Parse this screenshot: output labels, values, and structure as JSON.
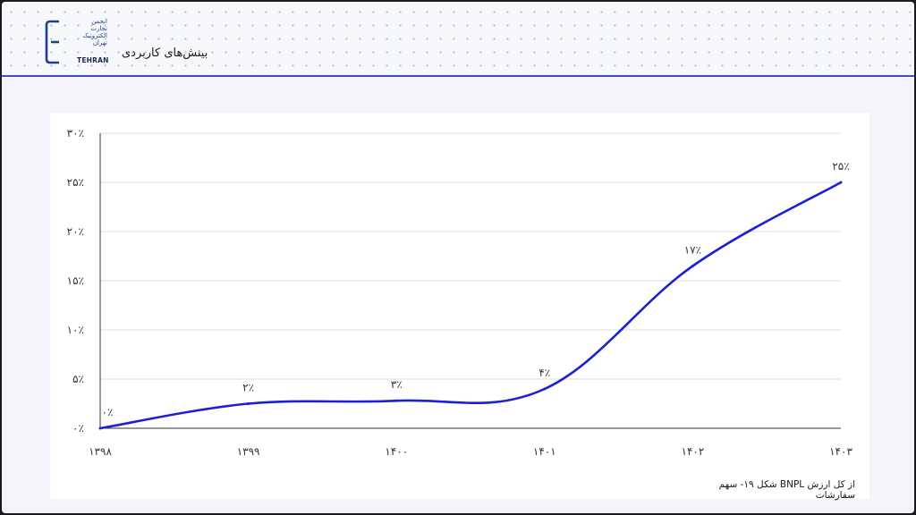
{
  "header": {
    "title": "بینش‌های کاربردی",
    "logo_text_fa": [
      "انجمن",
      "تجارت",
      "الکترونیک",
      "تهران"
    ],
    "logo_text_en": "TEHRAN"
  },
  "colors": {
    "accent": "#3d4fb8",
    "line": "#1b1fd6",
    "logo": "#1f3f8a"
  },
  "chart_data": {
    "type": "line",
    "categories": [
      "۱۳۹۸",
      "۱۳۹۹",
      "۱۴۰۰",
      "۱۴۰۱",
      "۱۴۰۲",
      "۱۴۰۳"
    ],
    "values": [
      0,
      2.5,
      2.8,
      4,
      16.5,
      25
    ],
    "data_labels": [
      "۰٪",
      "۲٪",
      "۳٪",
      "۴٪",
      "۱۷٪",
      "۲۵٪"
    ],
    "yticks": [
      {
        "value": 0,
        "label": "۰٪"
      },
      {
        "value": 5,
        "label": "۵٪"
      },
      {
        "value": 10,
        "label": "۱۰٪"
      },
      {
        "value": 15,
        "label": "۱۵٪"
      },
      {
        "value": 20,
        "label": "۲۰٪"
      },
      {
        "value": 25,
        "label": "۲۵٪"
      },
      {
        "value": 30,
        "label": "۳۰٪"
      }
    ],
    "ylim": [
      0,
      30
    ],
    "grid": true,
    "xlabel": "",
    "ylabel": "",
    "caption": "شکل ۱۹- سهم BNPL از کل ارزش سفارشات"
  }
}
